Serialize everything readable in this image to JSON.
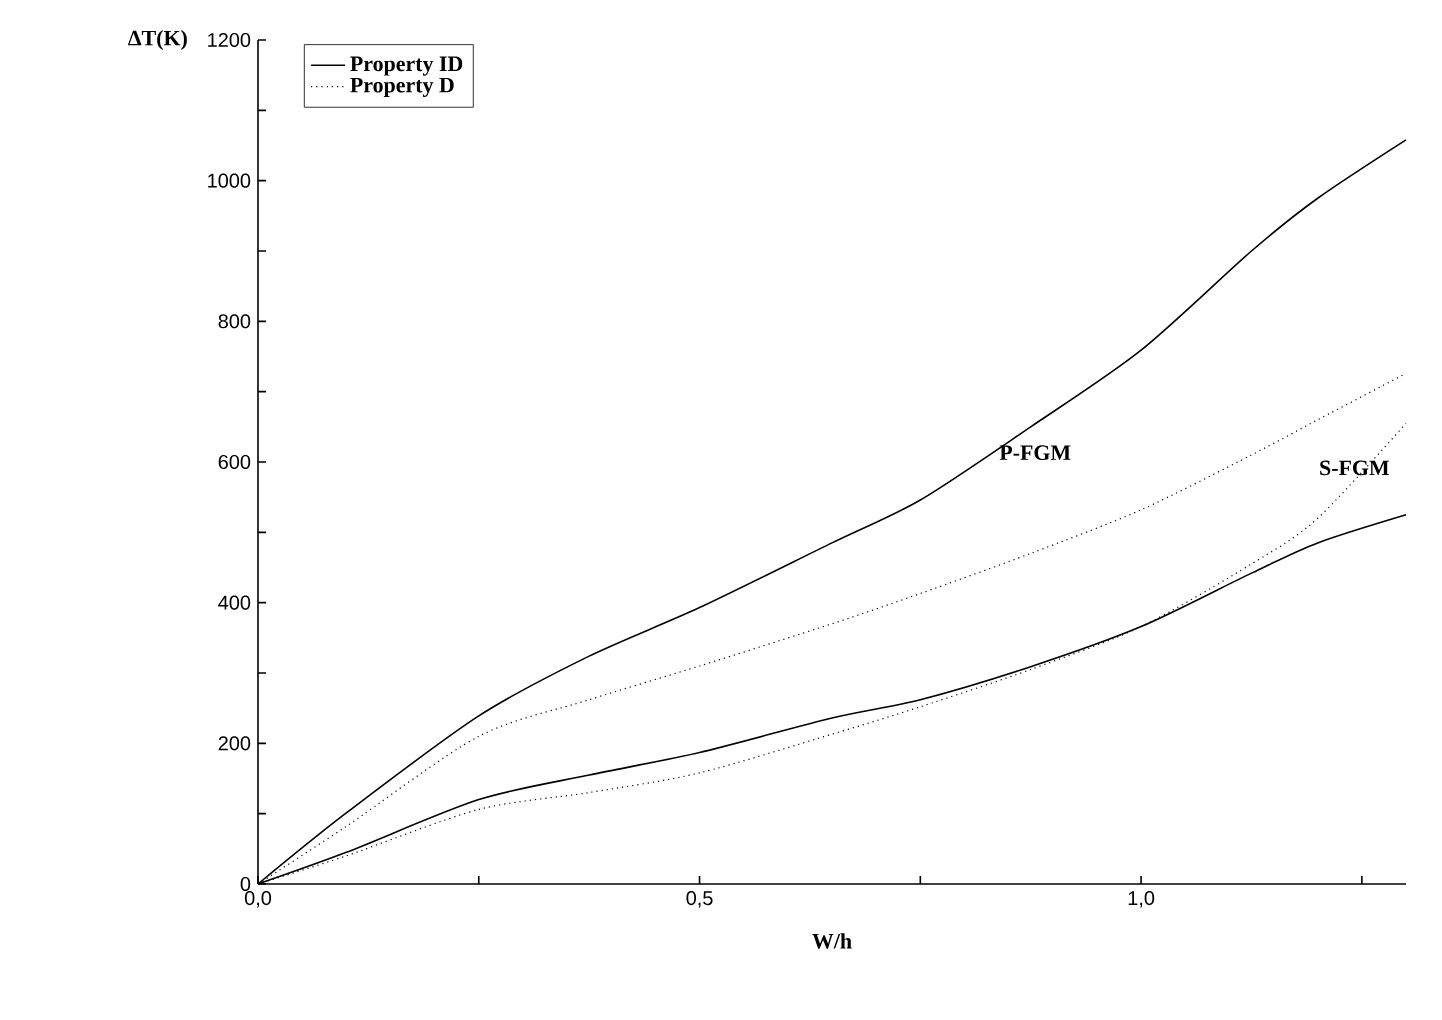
{
  "chart_data": {
    "type": "line",
    "xlabel": "W/h",
    "ylabel": "ΔT(K)",
    "x": [
      0,
      0.1,
      0.25,
      0.375,
      0.5,
      0.65,
      0.75,
      0.875,
      1.0,
      1.125,
      1.2,
      1.3
    ],
    "series": [
      {
        "name": "Property ID",
        "color": "#000000",
        "line_style": "solid",
        "values": [
          0,
          101,
          239,
          324,
          393,
          485,
          546,
          650,
          759,
          900,
          975,
          1058
        ]
      },
      {
        "name": "Property D",
        "color": "#000000",
        "line_style": "dotted",
        "values": [
          0,
          82,
          210,
          262,
          310,
          370,
          413,
          470,
          532,
          610,
          660,
          726
        ]
      },
      {
        "color": "#000000",
        "line_style": "solid",
        "values": [
          0,
          45,
          120,
          155,
          187,
          236,
          262,
          309,
          366,
          442,
          485,
          525
        ]
      },
      {
        "color": "#000000",
        "line_style": "dotted",
        "values": [
          0,
          40,
          106,
          130,
          158,
          213,
          252,
          305,
          366,
          455,
          520,
          655
        ]
      }
    ],
    "xlim": [
      0,
      1.3
    ],
    "ylim": [
      0,
      1200
    ],
    "xticks": [
      {
        "value": 0,
        "label": "0,0"
      },
      {
        "value": 0.25,
        "label": null
      },
      {
        "value": 0.5,
        "label": "0,5"
      },
      {
        "value": 0.75,
        "label": null
      },
      {
        "value": 1.0,
        "label": "1,0"
      },
      {
        "value": 1.25,
        "label": null
      }
    ],
    "yticks": [
      0,
      {
        "value": 100,
        "label": null
      },
      200,
      {
        "value": 300,
        "label": null
      },
      400,
      {
        "value": 500,
        "label": null
      },
      600,
      {
        "value": 700,
        "label": null
      },
      800,
      {
        "value": 900,
        "label": null
      },
      1000,
      {
        "value": 1100,
        "label": null
      },
      1200
    ],
    "annotations": [
      "P-FGM",
      "S-FGM"
    ],
    "legend": "top left",
    "grid": false,
    "marker": "none"
  }
}
